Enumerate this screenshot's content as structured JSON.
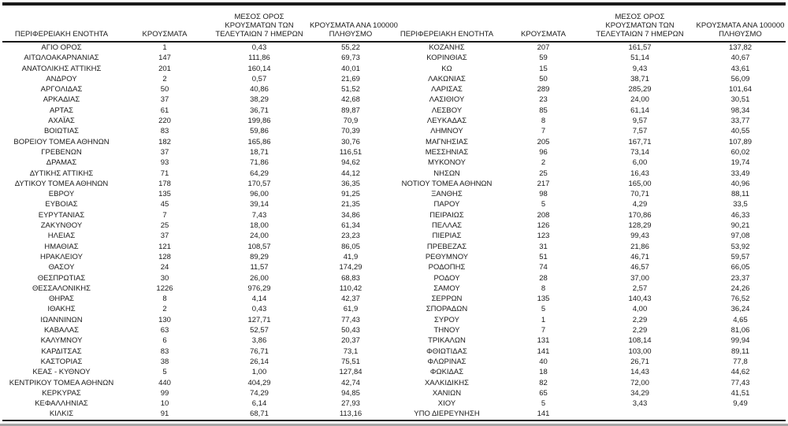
{
  "colors": {
    "text": "#1a1a1a",
    "rule_dark": "#1a1a1a",
    "rule_gray": "#a6a6a6",
    "background": "#ffffff"
  },
  "table_left": {
    "headers": [
      [
        "ΠΕΡΙΦΕΡΕΙΑΚΗ ΕΝΟΤΗΤΑ"
      ],
      [
        "ΚΡΟΥΣΜΑΤΑ"
      ],
      [
        "ΜΕΣΟΣ ΟΡΟΣ",
        "ΚΡΟΥΣΜΑΤΩΝ ΤΩΝ",
        "ΤΕΛΕΥΤΑΙΩΝ 7 ΗΜΕΡΩΝ"
      ],
      [
        "ΚΡΟΥΣΜΑΤΑ ΑΝΑ 100000",
        "ΠΛΗΘΥΣΜΟ"
      ]
    ],
    "rows": [
      [
        "ΑΓΙΟ ΟΡΟΣ",
        "1",
        "0,43",
        "55,22"
      ],
      [
        "ΑΙΤΩΛΟΑΚΑΡΝΑΝΙΑΣ",
        "147",
        "111,86",
        "69,73"
      ],
      [
        "ΑΝΑΤΟΛΙΚΗΣ ΑΤΤΙΚΗΣ",
        "201",
        "160,14",
        "40,01"
      ],
      [
        "ΑΝΔΡΟΥ",
        "2",
        "0,57",
        "21,69"
      ],
      [
        "ΑΡΓΟΛΙΔΑΣ",
        "50",
        "40,86",
        "51,52"
      ],
      [
        "ΑΡΚΑΔΙΑΣ",
        "37",
        "38,29",
        "42,68"
      ],
      [
        "ΑΡΤΑΣ",
        "61",
        "36,71",
        "89,87"
      ],
      [
        "ΑΧΑΪΑΣ",
        "220",
        "199,86",
        "70,9"
      ],
      [
        "ΒΟΙΩΤΙΑΣ",
        "83",
        "59,86",
        "70,39"
      ],
      [
        "ΒΟΡΕΙΟΥ ΤΟΜΕΑ ΑΘΗΝΩΝ",
        "182",
        "165,86",
        "30,76"
      ],
      [
        "ΓΡΕΒΕΝΩΝ",
        "37",
        "18,71",
        "116,51"
      ],
      [
        "ΔΡΑΜΑΣ",
        "93",
        "71,86",
        "94,62"
      ],
      [
        "ΔΥΤΙΚΗΣ ΑΤΤΙΚΗΣ",
        "71",
        "64,29",
        "44,12"
      ],
      [
        "ΔΥΤΙΚΟΥ ΤΟΜΕΑ ΑΘΗΝΩΝ",
        "178",
        "170,57",
        "36,35"
      ],
      [
        "ΕΒΡΟΥ",
        "135",
        "96,00",
        "91,25"
      ],
      [
        "ΕΥΒΟΙΑΣ",
        "45",
        "39,14",
        "21,35"
      ],
      [
        "ΕΥΡΥΤΑΝΙΑΣ",
        "7",
        "7,43",
        "34,86"
      ],
      [
        "ΖΑΚΥΝΘΟΥ",
        "25",
        "18,00",
        "61,34"
      ],
      [
        "ΗΛΕΙΑΣ",
        "37",
        "24,00",
        "23,23"
      ],
      [
        "ΗΜΑΘΙΑΣ",
        "121",
        "108,57",
        "86,05"
      ],
      [
        "ΗΡΑΚΛΕΙΟΥ",
        "128",
        "89,29",
        "41,9"
      ],
      [
        "ΘΑΣΟΥ",
        "24",
        "11,57",
        "174,29"
      ],
      [
        "ΘΕΣΠΡΩΤΙΑΣ",
        "30",
        "26,00",
        "68,83"
      ],
      [
        "ΘΕΣΣΑΛΟΝΙΚΗΣ",
        "1226",
        "976,29",
        "110,42"
      ],
      [
        "ΘΗΡΑΣ",
        "8",
        "4,14",
        "42,37"
      ],
      [
        "ΙΘΑΚΗΣ",
        "2",
        "0,43",
        "61,9"
      ],
      [
        "ΙΩΑΝΝΙΝΩΝ",
        "130",
        "127,71",
        "77,43"
      ],
      [
        "ΚΑΒΑΛΑΣ",
        "63",
        "52,57",
        "50,43"
      ],
      [
        "ΚΑΛΥΜΝΟΥ",
        "6",
        "3,86",
        "20,37"
      ],
      [
        "ΚΑΡΔΙΤΣΑΣ",
        "83",
        "76,71",
        "73,1"
      ],
      [
        "ΚΑΣΤΟΡΙΑΣ",
        "38",
        "26,14",
        "75,51"
      ],
      [
        "ΚΕΑΣ - ΚΥΘΝΟΥ",
        "5",
        "1,00",
        "127,84"
      ],
      [
        "ΚΕΝΤΡΙΚΟΥ ΤΟΜΕΑ ΑΘΗΝΩΝ",
        "440",
        "404,29",
        "42,74"
      ],
      [
        "ΚΕΡΚΥΡΑΣ",
        "99",
        "74,29",
        "94,85"
      ],
      [
        "ΚΕΦΑΛΛΗΝΙΑΣ",
        "10",
        "6,14",
        "27,93"
      ],
      [
        "ΚΙΛΚΙΣ",
        "91",
        "68,71",
        "113,16"
      ]
    ]
  },
  "table_right": {
    "headers": [
      [
        "ΠΕΡΙΦΕΡΕΙΑΚΗ ΕΝΟΤΗΤΑ"
      ],
      [
        "ΚΡΟΥΣΜΑΤΑ"
      ],
      [
        "ΜΕΣΟΣ ΟΡΟΣ",
        "ΚΡΟΥΣΜΑΤΩΝ ΤΩΝ",
        "ΤΕΛΕΥΤΑΙΩΝ 7 ΗΜΕΡΩΝ"
      ],
      [
        "ΚΡΟΥΣΜΑΤΑ ΑΝΑ 100000",
        "ΠΛΗΘΥΣΜΟ"
      ]
    ],
    "rows": [
      [
        "ΚΟΖΑΝΗΣ",
        "207",
        "161,57",
        "137,82"
      ],
      [
        "ΚΟΡΙΝΘΙΑΣ",
        "59",
        "51,14",
        "40,67"
      ],
      [
        "ΚΩ",
        "15",
        "9,43",
        "43,61"
      ],
      [
        "ΛΑΚΩΝΙΑΣ",
        "50",
        "38,71",
        "56,09"
      ],
      [
        "ΛΑΡΙΣΑΣ",
        "289",
        "285,29",
        "101,64"
      ],
      [
        "ΛΑΣΙΘΙΟΥ",
        "23",
        "24,00",
        "30,51"
      ],
      [
        "ΛΕΣΒΟΥ",
        "85",
        "61,14",
        "98,34"
      ],
      [
        "ΛΕΥΚΑΔΑΣ",
        "8",
        "9,57",
        "33,77"
      ],
      [
        "ΛΗΜΝΟΥ",
        "7",
        "7,57",
        "40,55"
      ],
      [
        "ΜΑΓΝΗΣΙΑΣ",
        "205",
        "167,71",
        "107,89"
      ],
      [
        "ΜΕΣΣΗΝΙΑΣ",
        "96",
        "73,14",
        "60,02"
      ],
      [
        "ΜΥΚΟΝΟΥ",
        "2",
        "6,00",
        "19,74"
      ],
      [
        "ΝΗΣΩΝ",
        "25",
        "16,43",
        "33,49"
      ],
      [
        "ΝΟΤΙΟΥ ΤΟΜΕΑ ΑΘΗΝΩΝ",
        "217",
        "165,00",
        "40,96"
      ],
      [
        "ΞΑΝΘΗΣ",
        "98",
        "70,71",
        "88,11"
      ],
      [
        "ΠΑΡΟΥ",
        "5",
        "4,29",
        "33,5"
      ],
      [
        "ΠΕΙΡΑΙΩΣ",
        "208",
        "170,86",
        "46,33"
      ],
      [
        "ΠΕΛΛΑΣ",
        "126",
        "128,29",
        "90,21"
      ],
      [
        "ΠΙΕΡΙΑΣ",
        "123",
        "99,43",
        "97,08"
      ],
      [
        "ΠΡΕΒΕΖΑΣ",
        "31",
        "21,86",
        "53,92"
      ],
      [
        "ΡΕΘΥΜΝΟΥ",
        "51",
        "46,71",
        "59,57"
      ],
      [
        "ΡΟΔΟΠΗΣ",
        "74",
        "46,57",
        "66,05"
      ],
      [
        "ΡΟΔΟΥ",
        "28",
        "37,00",
        "23,37"
      ],
      [
        "ΣΑΜΟΥ",
        "8",
        "2,57",
        "24,26"
      ],
      [
        "ΣΕΡΡΩΝ",
        "135",
        "140,43",
        "76,52"
      ],
      [
        "ΣΠΟΡΑΔΩΝ",
        "5",
        "4,00",
        "36,24"
      ],
      [
        "ΣΥΡΟΥ",
        "1",
        "2,29",
        "4,65"
      ],
      [
        "ΤΗΝΟΥ",
        "7",
        "2,29",
        "81,06"
      ],
      [
        "ΤΡΙΚΑΛΩΝ",
        "131",
        "108,14",
        "99,94"
      ],
      [
        "ΦΘΙΩΤΙΔΑΣ",
        "141",
        "103,00",
        "89,11"
      ],
      [
        "ΦΛΩΡΙΝΑΣ",
        "40",
        "26,71",
        "77,8"
      ],
      [
        "ΦΩΚΙΔΑΣ",
        "18",
        "14,43",
        "44,62"
      ],
      [
        "ΧΑΛΚΙΔΙΚΗΣ",
        "82",
        "72,00",
        "77,43"
      ],
      [
        "ΧΑΝΙΩΝ",
        "65",
        "34,29",
        "41,51"
      ],
      [
        "ΧΙΟΥ",
        "5",
        "3,43",
        "9,49"
      ],
      [
        "ΥΠΟ ΔΙΕΡΕΥΝΗΣΗ",
        "141",
        "",
        ""
      ]
    ]
  }
}
